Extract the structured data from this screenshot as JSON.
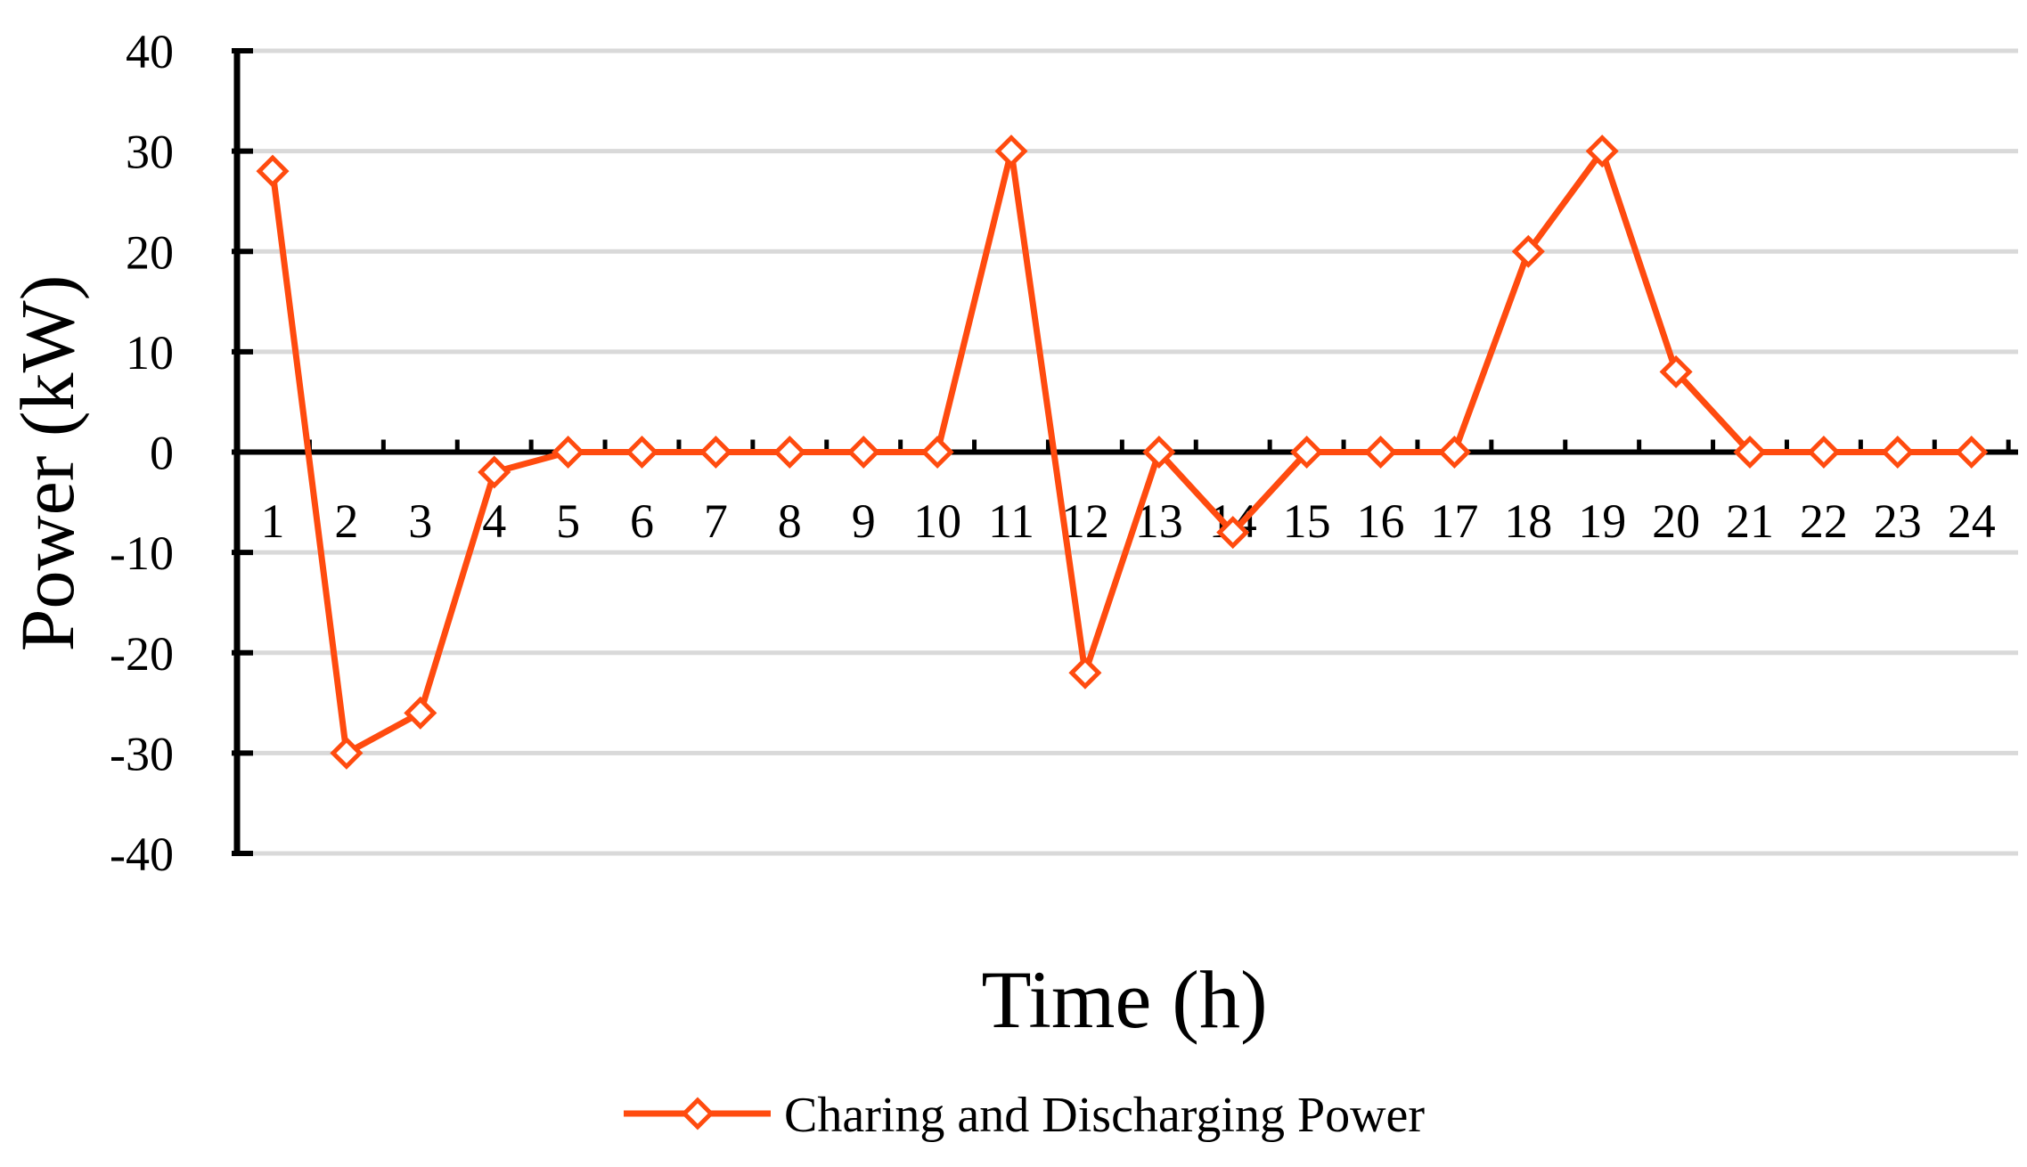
{
  "chart_data": {
    "type": "line",
    "xlabel": "Time (h)",
    "ylabel": "Power (kW)",
    "ylim": [
      -40,
      40
    ],
    "yticks": [
      40,
      30,
      20,
      10,
      0,
      -10,
      -20,
      -30,
      -40
    ],
    "categories": [
      "1",
      "2",
      "3",
      "4",
      "5",
      "6",
      "7",
      "8",
      "9",
      "10",
      "11",
      "12",
      "13",
      "14",
      "15",
      "16",
      "17",
      "18",
      "19",
      "20",
      "21",
      "22",
      "23",
      "24"
    ],
    "series": [
      {
        "name": "Charing and Discharging Power",
        "color": "#FF4B0F",
        "marker": "diamond-open",
        "values": [
          28,
          -30,
          -26,
          -2,
          0,
          0,
          0,
          0,
          0,
          0,
          30,
          -22,
          0,
          -8,
          0,
          0,
          0,
          20,
          30,
          8,
          0,
          0,
          0,
          0
        ]
      }
    ],
    "grid": true,
    "legend_position": "bottom-center"
  }
}
